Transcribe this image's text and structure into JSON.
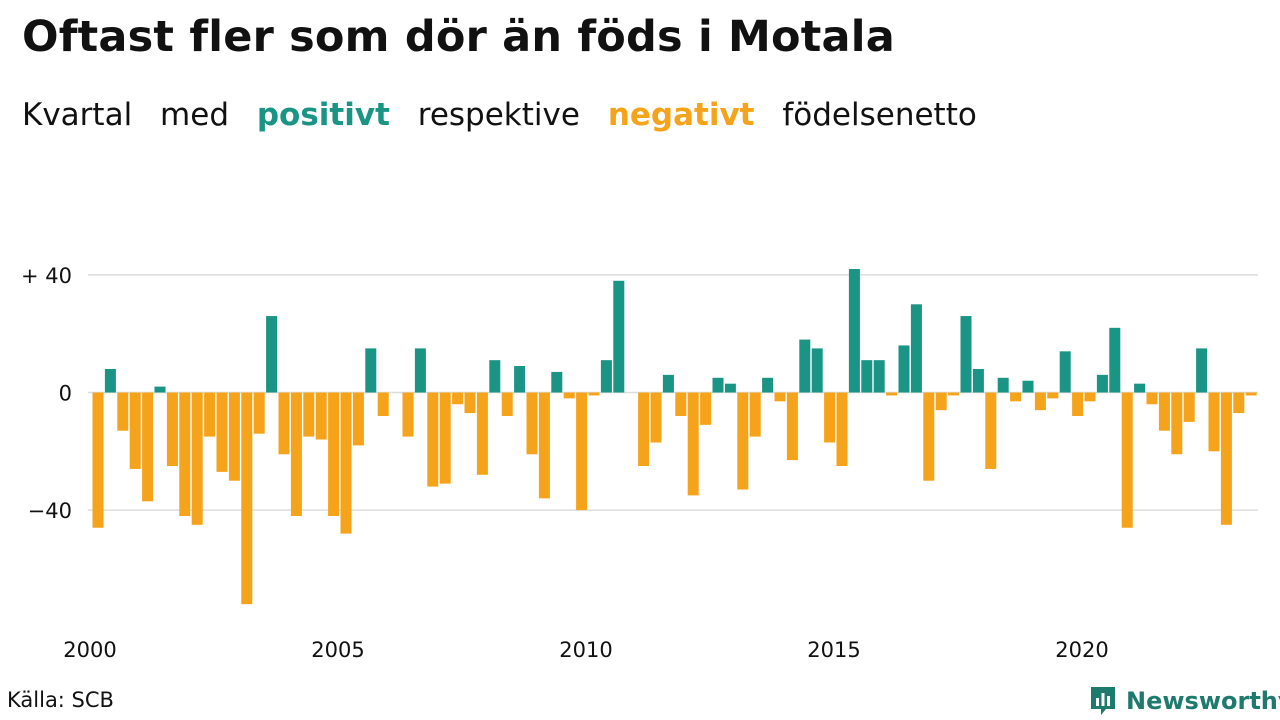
{
  "title": "Oftast fler som dör än föds i Motala",
  "subtitle": {
    "w1": "Kvartal",
    "w2": "med",
    "positive_word": "positivt",
    "w4": "respektive",
    "negative_word": "negativt",
    "w6": "födelsenetto"
  },
  "source": "Källa: SCB",
  "brand": "Newsworthy",
  "colors": {
    "positive": "#1a9484",
    "negative": "#f5a31a",
    "grid": "#dddddd",
    "text": "#111111",
    "brand": "#1f7a6e"
  },
  "chart_data": {
    "type": "bar",
    "x_start": 2000,
    "x_step_quarters": 1,
    "xtick_labels": [
      "2000",
      "2005",
      "2010",
      "2015",
      "2020"
    ],
    "ytick_labels": [
      "+ 40",
      "0",
      "−40"
    ],
    "yticks": [
      40,
      0,
      -40
    ],
    "ylim": [
      -72,
      42
    ],
    "grid": true,
    "values": [
      -46,
      8,
      -13,
      -26,
      -37,
      2,
      -25,
      -42,
      -45,
      -15,
      -27,
      -30,
      -72,
      -14,
      26,
      -21,
      -42,
      -15,
      -16,
      -42,
      -48,
      -18,
      15,
      -8,
      0,
      -15,
      15,
      -32,
      -31,
      -4,
      -7,
      -28,
      11,
      -8,
      9,
      -21,
      -36,
      7,
      -2,
      -40,
      -1,
      11,
      38,
      0,
      -25,
      -17,
      6,
      -8,
      -35,
      -11,
      5,
      3,
      -33,
      -15,
      5,
      -3,
      -23,
      18,
      15,
      -17,
      -25,
      42,
      11,
      11,
      -1,
      16,
      30,
      -30,
      -6,
      -1,
      26,
      8,
      -26,
      5,
      -3,
      4,
      -6,
      -2,
      14,
      -8,
      -3,
      6,
      22,
      -46,
      3,
      -4,
      -13,
      -21,
      -10,
      15,
      -20,
      -45,
      -7,
      -1
    ]
  }
}
